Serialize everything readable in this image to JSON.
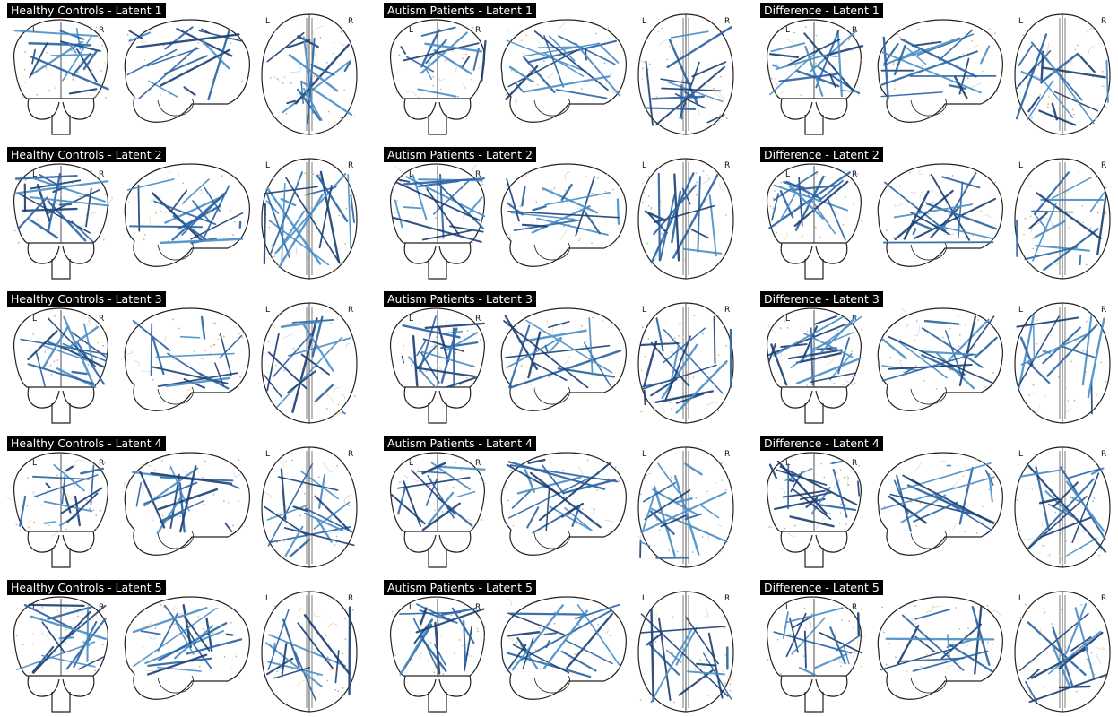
{
  "panels": [
    {
      "title": "Healthy Controls - Latent 1"
    },
    {
      "title": "Autism Patients - Latent 1"
    },
    {
      "title": "Difference - Latent 1"
    },
    {
      "title": "Healthy Controls - Latent 2"
    },
    {
      "title": "Autism Patients - Latent 2"
    },
    {
      "title": "Difference - Latent 2"
    },
    {
      "title": "Healthy Controls - Latent 3"
    },
    {
      "title": "Autism Patients - Latent 3"
    },
    {
      "title": "Difference - Latent 3"
    },
    {
      "title": "Healthy Controls - Latent 4"
    },
    {
      "title": "Autism Patients - Latent 4"
    },
    {
      "title": "Difference - Latent 4"
    },
    {
      "title": "Healthy Controls - Latent 5"
    },
    {
      "title": "Autism Patients - Latent 5"
    },
    {
      "title": "Difference - Latent 5"
    }
  ],
  "labels": {
    "left": "L",
    "right": "R"
  },
  "colors": {
    "background": "#ffffff",
    "title_bg": "#000000",
    "title_text": "#ffffff",
    "outline": "#222222",
    "connection_dark": "#1b3f73",
    "connection_mid": "#2b63a3",
    "connection_light": "#4a8fc7"
  }
}
